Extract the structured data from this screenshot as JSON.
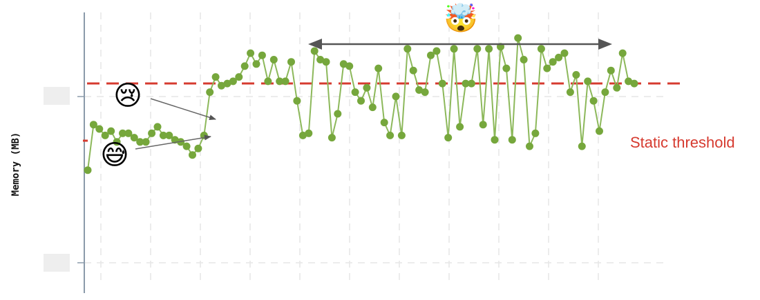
{
  "chart_data": {
    "type": "scatter",
    "title": "",
    "xlabel": "",
    "ylabel": "Memory (MB)",
    "ylim": [
      0,
      100
    ],
    "yticks_labels_visible": false,
    "grid": true,
    "series": [
      {
        "values": [
          31,
          52,
          50,
          47,
          49,
          44,
          48,
          48,
          46,
          44,
          44,
          48,
          51,
          47,
          47,
          45,
          44,
          42,
          38,
          41,
          47,
          67,
          74,
          70,
          71,
          72,
          74,
          79,
          85,
          80,
          84,
          72,
          82,
          72,
          72,
          81,
          63,
          47,
          48,
          86,
          82,
          81,
          46,
          57,
          80,
          79,
          67,
          63,
          69,
          60,
          78,
          53,
          47,
          65,
          47,
          87,
          77,
          68,
          67,
          84,
          86,
          71,
          46,
          87,
          51,
          71,
          71,
          87,
          52,
          87,
          45,
          88,
          78,
          45,
          92,
          82,
          42,
          48,
          87,
          78,
          81,
          83,
          85,
          67,
          75,
          42,
          72,
          63,
          49,
          67,
          77,
          69,
          85,
          72,
          71
        ],
        "color": "#76a73c"
      }
    ],
    "threshold": {
      "label": "Static threshold",
      "value": 71,
      "color": "#d63a2f"
    },
    "annotations": [
      {
        "emoji": "😢",
        "name": "sad-face"
      },
      {
        "emoji": "😅",
        "name": "sweat-smile-face"
      },
      {
        "emoji": "🤯",
        "name": "exploding-head-face"
      }
    ]
  }
}
